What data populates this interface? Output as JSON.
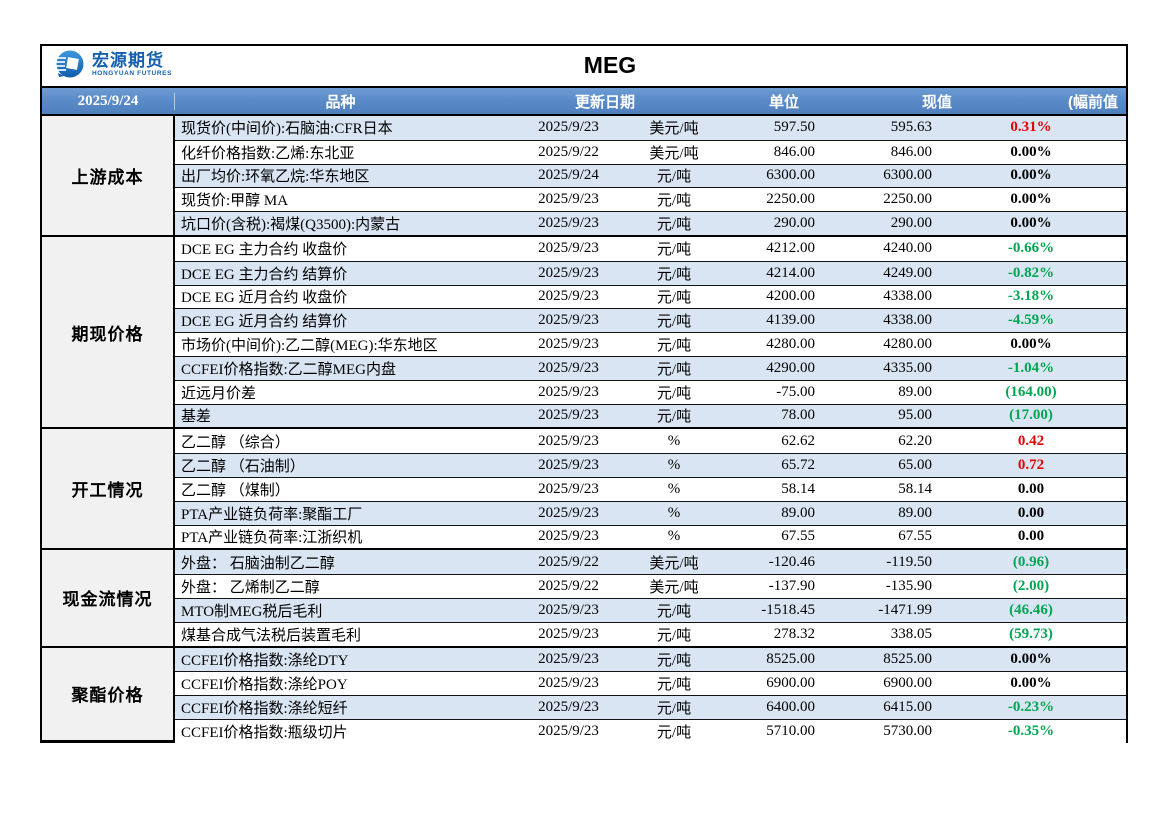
{
  "report": {
    "brand_name": "宏源期货",
    "brand_sub": "HONGYUAN FUTURES",
    "title": "MEG"
  },
  "header": {
    "report_date": "2025/9/24",
    "variety": "品种",
    "update_date": "更新日期",
    "unit": "单位",
    "current": "现值",
    "change_prev": "(幅前值"
  },
  "colors": {
    "header_bg": "#5b8cc8",
    "stripe": "#d9e5f2",
    "category_bg": "#f1f1f1",
    "red": "#e60000",
    "green": "#00a651",
    "black": "#000000",
    "brand_blue": "#1460ae"
  },
  "icons": {
    "brand_logo": "hongyuan-logo-icon"
  },
  "sections": [
    {
      "label": "上游成本",
      "rows": [
        {
          "name": "现货价(中间价):石脑油:CFR日本",
          "date": "2025/9/23",
          "unit": "美元/吨",
          "current": "597.50",
          "previous": "595.63",
          "change": "0.31%",
          "change_color": "red"
        },
        {
          "name": "化纤价格指数:乙烯:东北亚",
          "date": "2025/9/22",
          "unit": "美元/吨",
          "current": "846.00",
          "previous": "846.00",
          "change": "0.00%",
          "change_color": "black"
        },
        {
          "name": "出厂均价:环氧乙烷:华东地区",
          "date": "2025/9/24",
          "unit": "元/吨",
          "current": "6300.00",
          "previous": "6300.00",
          "change": "0.00%",
          "change_color": "black"
        },
        {
          "name": "现货价:甲醇 MA",
          "date": "2025/9/23",
          "unit": "元/吨",
          "current": "2250.00",
          "previous": "2250.00",
          "change": "0.00%",
          "change_color": "black"
        },
        {
          "name": "坑口价(含税):褐煤(Q3500):内蒙古",
          "date": "2025/9/23",
          "unit": "元/吨",
          "current": "290.00",
          "previous": "290.00",
          "change": "0.00%",
          "change_color": "black"
        }
      ]
    },
    {
      "label": "期现价格",
      "rows": [
        {
          "name": "DCE EG 主力合约 收盘价",
          "date": "2025/9/23",
          "unit": "元/吨",
          "current": "4212.00",
          "previous": "4240.00",
          "change": "-0.66%",
          "change_color": "green"
        },
        {
          "name": "DCE EG 主力合约 结算价",
          "date": "2025/9/23",
          "unit": "元/吨",
          "current": "4214.00",
          "previous": "4249.00",
          "change": "-0.82%",
          "change_color": "green"
        },
        {
          "name": "DCE EG 近月合约 收盘价",
          "date": "2025/9/23",
          "unit": "元/吨",
          "current": "4200.00",
          "previous": "4338.00",
          "change": "-3.18%",
          "change_color": "green"
        },
        {
          "name": "DCE EG 近月合约 结算价",
          "date": "2025/9/23",
          "unit": "元/吨",
          "current": "4139.00",
          "previous": "4338.00",
          "change": "-4.59%",
          "change_color": "green"
        },
        {
          "name": "市场价(中间价):乙二醇(MEG):华东地区",
          "date": "2025/9/23",
          "unit": "元/吨",
          "current": "4280.00",
          "previous": "4280.00",
          "change": "0.00%",
          "change_color": "black"
        },
        {
          "name": "CCFEI价格指数:乙二醇MEG内盘",
          "date": "2025/9/23",
          "unit": "元/吨",
          "current": "4290.00",
          "previous": "4335.00",
          "change": "-1.04%",
          "change_color": "green"
        },
        {
          "name": "近远月价差",
          "date": "2025/9/23",
          "unit": "元/吨",
          "current": "-75.00",
          "previous": "89.00",
          "change": "(164.00)",
          "change_color": "green"
        },
        {
          "name": "基差",
          "date": "2025/9/23",
          "unit": "元/吨",
          "current": "78.00",
          "previous": "95.00",
          "change": "(17.00)",
          "change_color": "green"
        }
      ]
    },
    {
      "label": "开工情况",
      "rows": [
        {
          "name": "乙二醇 （综合）",
          "date": "2025/9/23",
          "unit": "%",
          "current": "62.62",
          "previous": "62.20",
          "change": "0.42",
          "change_color": "red"
        },
        {
          "name": "乙二醇 （石油制）",
          "date": "2025/9/23",
          "unit": "%",
          "current": "65.72",
          "previous": "65.00",
          "change": "0.72",
          "change_color": "red"
        },
        {
          "name": "乙二醇 （煤制）",
          "date": "2025/9/23",
          "unit": "%",
          "current": "58.14",
          "previous": "58.14",
          "change": "0.00",
          "change_color": "black"
        },
        {
          "name": "PTA产业链负荷率:聚酯工厂",
          "date": "2025/9/23",
          "unit": "%",
          "current": "89.00",
          "previous": "89.00",
          "change": "0.00",
          "change_color": "black"
        },
        {
          "name": "PTA产业链负荷率:江浙织机",
          "date": "2025/9/23",
          "unit": "%",
          "current": "67.55",
          "previous": "67.55",
          "change": "0.00",
          "change_color": "black"
        }
      ]
    },
    {
      "label": "现金流情况",
      "rows": [
        {
          "name": "外盘： 石脑油制乙二醇",
          "date": "2025/9/22",
          "unit": "美元/吨",
          "current": "-120.46",
          "previous": "-119.50",
          "change": "(0.96)",
          "change_color": "green"
        },
        {
          "name": "外盘： 乙烯制乙二醇",
          "date": "2025/9/22",
          "unit": "美元/吨",
          "current": "-137.90",
          "previous": "-135.90",
          "change": "(2.00)",
          "change_color": "green"
        },
        {
          "name": "MTO制MEG税后毛利",
          "date": "2025/9/23",
          "unit": "元/吨",
          "current": "-1518.45",
          "previous": "-1471.99",
          "change": "(46.46)",
          "change_color": "green"
        },
        {
          "name": "煤基合成气法税后装置毛利",
          "date": "2025/9/23",
          "unit": "元/吨",
          "current": "278.32",
          "previous": "338.05",
          "change": "(59.73)",
          "change_color": "green"
        }
      ]
    },
    {
      "label": "聚酯价格",
      "rows": [
        {
          "name": "CCFEI价格指数:涤纶DTY",
          "date": "2025/9/23",
          "unit": "元/吨",
          "current": "8525.00",
          "previous": "8525.00",
          "change": "0.00%",
          "change_color": "black"
        },
        {
          "name": "CCFEI价格指数:涤纶POY",
          "date": "2025/9/23",
          "unit": "元/吨",
          "current": "6900.00",
          "previous": "6900.00",
          "change": "0.00%",
          "change_color": "black"
        },
        {
          "name": "CCFEI价格指数:涤纶短纤",
          "date": "2025/9/23",
          "unit": "元/吨",
          "current": "6400.00",
          "previous": "6415.00",
          "change": "-0.23%",
          "change_color": "green"
        },
        {
          "name": "CCFEI价格指数:瓶级切片",
          "date": "2025/9/23",
          "unit": "元/吨",
          "current": "5710.00",
          "previous": "5730.00",
          "change": "-0.35%",
          "change_color": "green"
        }
      ]
    }
  ]
}
